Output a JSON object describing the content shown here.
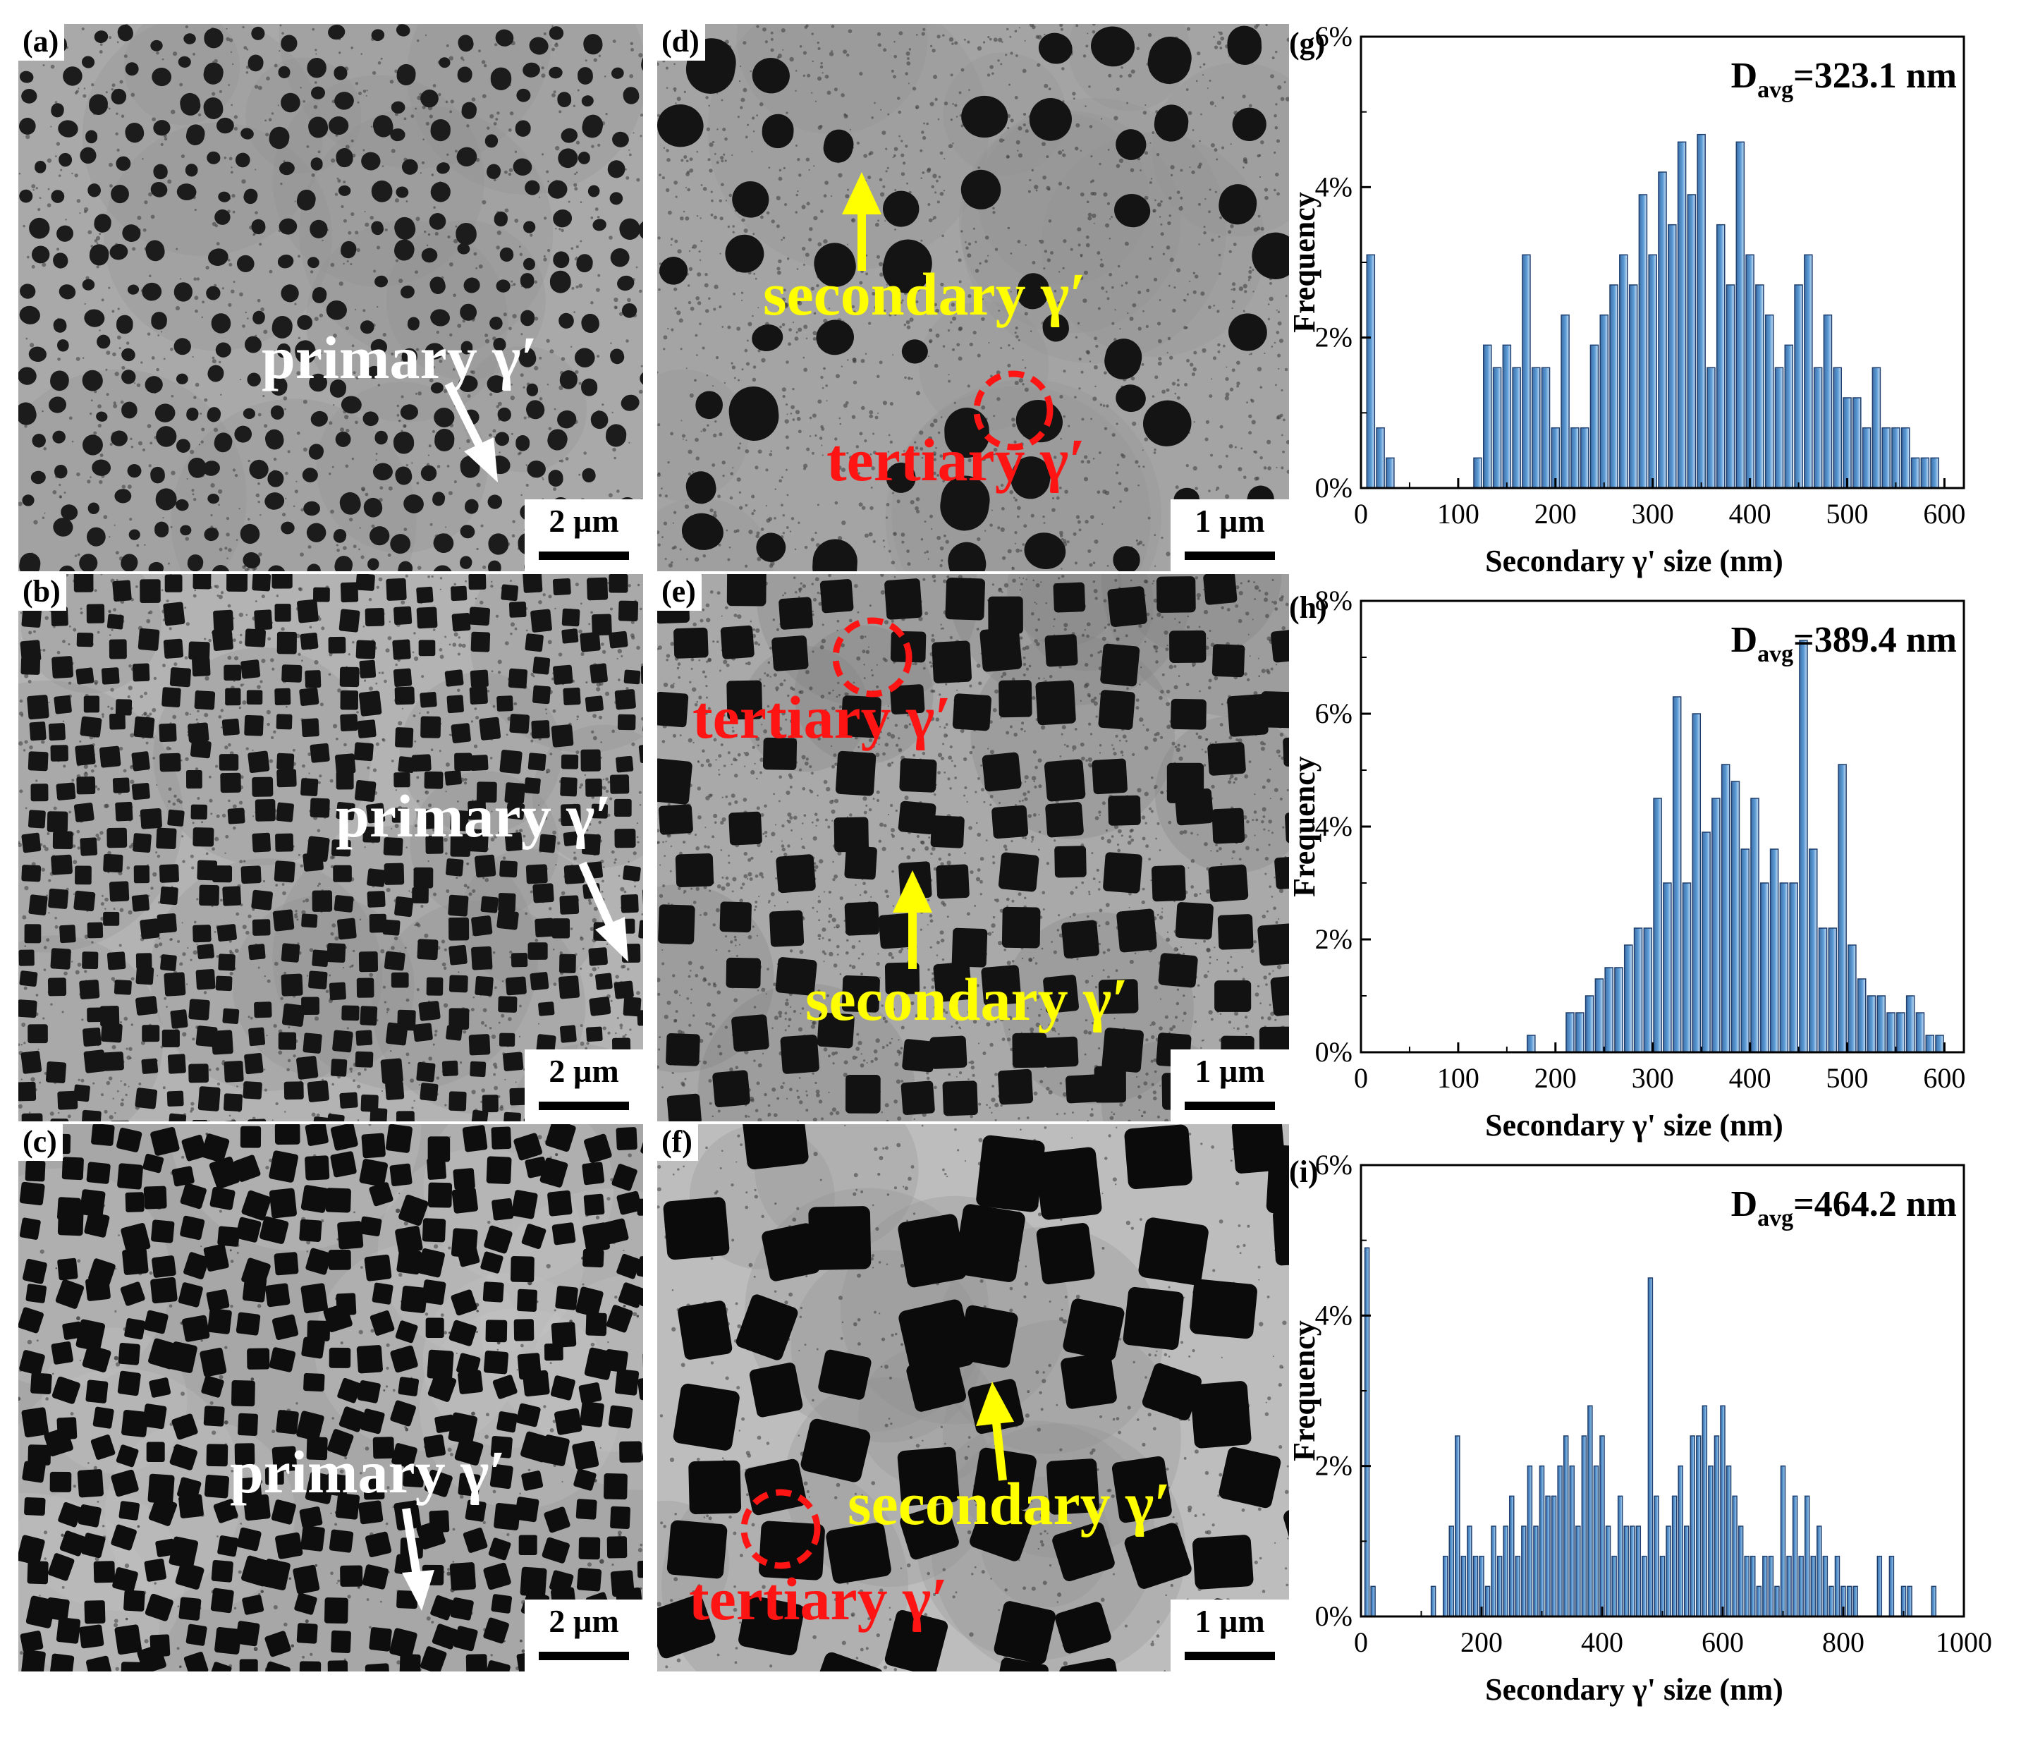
{
  "panels": {
    "a": {
      "label": "(a)",
      "scale": "2 µm",
      "annotation": "primary γ′"
    },
    "b": {
      "label": "(b)",
      "scale": "2 µm",
      "annotation": "primary γ′"
    },
    "c": {
      "label": "(c)",
      "scale": "2 µm",
      "annotation": "primary γ′"
    },
    "d": {
      "label": "(d)",
      "scale": "1 µm",
      "secondary": "secondary γ′",
      "tertiary": "tertiary γ′"
    },
    "e": {
      "label": "(e)",
      "scale": "1 µm",
      "secondary": "secondary γ′",
      "tertiary": "tertiary γ′"
    },
    "f": {
      "label": "(f)",
      "scale": "1 µm",
      "secondary": "secondary γ′",
      "tertiary": "tertiary γ′"
    }
  },
  "colors": {
    "histogram_bar": "#5b9bd5",
    "histogram_bar_dark": "#3e6fa8",
    "arrow_white": "#ffffff",
    "arrow_yellow": "#ffff00",
    "circle_red": "#ff1414"
  },
  "chart_data": [
    {
      "type": "bar",
      "panel_label": "(g)",
      "title": "",
      "annotation_main": "D",
      "annotation_sub": "avg",
      "annotation_value": "=323.1 nm",
      "xlabel": "Secondary γ' size (nm)",
      "ylabel": "Frequency",
      "xlim": [
        0,
        620
      ],
      "ylim": [
        0,
        6
      ],
      "xticks": [
        0,
        100,
        200,
        300,
        400,
        500,
        600
      ],
      "yticks": [
        0,
        2,
        4,
        6
      ],
      "ytick_labels": [
        "0%",
        "2%",
        "4%",
        "6%"
      ],
      "bin_width": 8,
      "x": [
        10,
        20,
        30,
        120,
        130,
        140,
        150,
        160,
        170,
        180,
        190,
        200,
        210,
        220,
        230,
        240,
        250,
        260,
        270,
        280,
        290,
        300,
        310,
        320,
        330,
        340,
        350,
        360,
        370,
        380,
        390,
        400,
        410,
        420,
        430,
        440,
        450,
        460,
        470,
        480,
        490,
        500,
        510,
        520,
        530,
        540,
        550,
        560,
        570,
        580,
        590
      ],
      "values": [
        3.1,
        0.8,
        0.4,
        0.4,
        1.9,
        1.6,
        1.9,
        1.6,
        3.1,
        1.6,
        1.6,
        0.8,
        2.3,
        0.8,
        0.8,
        1.9,
        2.3,
        2.7,
        3.1,
        2.7,
        3.9,
        3.1,
        4.2,
        3.5,
        4.6,
        3.9,
        4.7,
        1.6,
        3.5,
        2.7,
        4.6,
        3.1,
        2.7,
        2.3,
        1.6,
        1.9,
        2.7,
        3.1,
        1.6,
        2.3,
        1.6,
        1.2,
        1.2,
        0.8,
        1.6,
        0.8,
        0.8,
        0.8,
        0.4,
        0.4,
        0.4
      ]
    },
    {
      "type": "bar",
      "panel_label": "(h)",
      "title": "",
      "annotation_main": "D",
      "annotation_sub": "avg",
      "annotation_value": "=389.4 nm",
      "xlabel": "Secondary γ' size (nm)",
      "ylabel": "Frequency",
      "xlim": [
        0,
        620
      ],
      "ylim": [
        0,
        8
      ],
      "xticks": [
        0,
        100,
        200,
        300,
        400,
        500,
        600
      ],
      "yticks": [
        0,
        2,
        4,
        6,
        8
      ],
      "ytick_labels": [
        "0%",
        "2%",
        "4%",
        "6%",
        "8%"
      ],
      "bin_width": 8,
      "x": [
        175,
        215,
        225,
        235,
        245,
        255,
        265,
        275,
        285,
        295,
        305,
        315,
        325,
        335,
        345,
        355,
        365,
        375,
        385,
        395,
        405,
        415,
        425,
        435,
        445,
        455,
        465,
        475,
        485,
        495,
        505,
        515,
        525,
        535,
        545,
        555,
        565,
        575,
        585,
        595
      ],
      "values": [
        0.3,
        0.7,
        0.7,
        1.0,
        1.3,
        1.5,
        1.5,
        1.9,
        2.2,
        2.2,
        4.5,
        3.0,
        6.3,
        3.0,
        6.0,
        3.9,
        4.5,
        5.1,
        4.8,
        3.6,
        4.5,
        3.0,
        3.6,
        3.0,
        3.0,
        7.3,
        3.6,
        2.2,
        2.2,
        5.1,
        1.9,
        1.3,
        1.0,
        1.0,
        0.7,
        0.7,
        1.0,
        0.7,
        0.3,
        0.3
      ]
    },
    {
      "type": "bar",
      "panel_label": "(i)",
      "title": "",
      "annotation_main": "D",
      "annotation_sub": "avg",
      "annotation_value": "=464.2 nm",
      "xlabel": "Secondary γ' size (nm)",
      "ylabel": "Frequency",
      "xlim": [
        0,
        1000
      ],
      "ylim": [
        0,
        6
      ],
      "xticks": [
        0,
        200,
        400,
        600,
        800,
        1000
      ],
      "yticks": [
        0,
        2,
        4,
        6
      ],
      "ytick_labels": [
        "0%",
        "2%",
        "4%",
        "6%"
      ],
      "bin_width": 7,
      "x": [
        10,
        20,
        120,
        140,
        150,
        160,
        170,
        180,
        190,
        200,
        210,
        220,
        230,
        240,
        250,
        260,
        270,
        280,
        290,
        300,
        310,
        320,
        330,
        340,
        350,
        360,
        370,
        380,
        390,
        400,
        410,
        420,
        430,
        440,
        450,
        460,
        470,
        480,
        490,
        500,
        510,
        520,
        530,
        540,
        550,
        560,
        570,
        580,
        590,
        600,
        610,
        620,
        630,
        640,
        650,
        660,
        670,
        680,
        690,
        700,
        710,
        720,
        730,
        740,
        750,
        760,
        770,
        780,
        790,
        800,
        810,
        820,
        860,
        880,
        900,
        910,
        950
      ],
      "values": [
        4.9,
        0.4,
        0.4,
        0.8,
        1.2,
        2.4,
        0.8,
        1.2,
        0.8,
        0.8,
        0.4,
        1.2,
        0.8,
        1.2,
        1.6,
        0.8,
        1.2,
        2.0,
        1.2,
        2.0,
        1.6,
        1.6,
        2.0,
        2.4,
        2.0,
        1.2,
        2.4,
        2.8,
        2.0,
        2.4,
        1.2,
        0.8,
        1.6,
        1.2,
        1.2,
        1.2,
        0.8,
        4.5,
        1.6,
        0.8,
        1.2,
        1.6,
        2.0,
        1.2,
        2.4,
        2.4,
        2.8,
        2.0,
        2.4,
        2.8,
        2.0,
        1.6,
        1.2,
        0.8,
        0.8,
        0.4,
        0.8,
        0.8,
        0.4,
        2.0,
        0.8,
        1.6,
        0.8,
        1.6,
        0.8,
        1.2,
        0.8,
        0.4,
        0.8,
        0.4,
        0.4,
        0.4,
        0.8,
        0.8,
        0.4,
        0.4,
        0.4
      ]
    }
  ]
}
